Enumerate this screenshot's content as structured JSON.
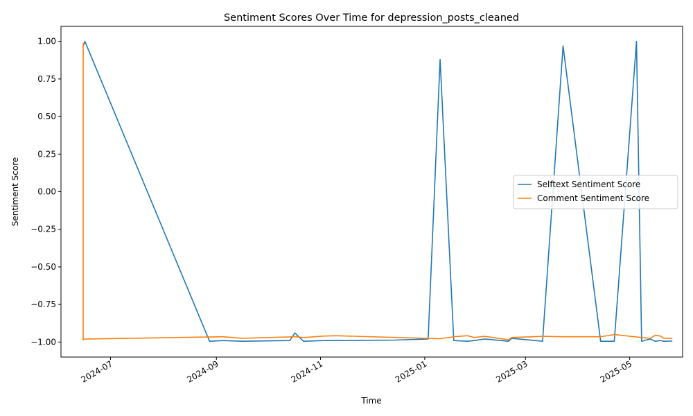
{
  "chart_data": {
    "type": "line",
    "title": "Sentiment Scores Over Time for depression_posts_cleaned",
    "xlabel": "Time",
    "ylabel": "Sentiment Score",
    "xlim": [
      "2024-06-02",
      "2025-06-01"
    ],
    "ylim": [
      -1.1,
      1.1
    ],
    "x_ticks": [
      {
        "date": "2024-07-01",
        "label": "2024-07"
      },
      {
        "date": "2024-09-01",
        "label": "2024-09"
      },
      {
        "date": "2024-11-01",
        "label": "2024-11"
      },
      {
        "date": "2025-01-01",
        "label": "2025-01"
      },
      {
        "date": "2025-03-01",
        "label": "2025-03"
      },
      {
        "date": "2025-05-01",
        "label": "2025-05"
      }
    ],
    "y_ticks": [
      {
        "value": 1.0,
        "label": "1.00"
      },
      {
        "value": 0.75,
        "label": "0.75"
      },
      {
        "value": 0.5,
        "label": "0.50"
      },
      {
        "value": 0.25,
        "label": "0.25"
      },
      {
        "value": 0.0,
        "label": "0.00"
      },
      {
        "value": -0.25,
        "label": "−0.25"
      },
      {
        "value": -0.5,
        "label": "−0.50"
      },
      {
        "value": -0.75,
        "label": "−0.75"
      },
      {
        "value": -1.0,
        "label": "−1.00"
      }
    ],
    "grid": false,
    "legend_position": "center-right",
    "series": [
      {
        "name": "Selftext Sentiment Score",
        "color": "#1f77b4",
        "points": [
          [
            "2024-06-15",
            0.97
          ],
          [
            "2024-06-16",
            1.0
          ],
          [
            "2024-08-28",
            -0.995
          ],
          [
            "2024-09-05",
            -0.99
          ],
          [
            "2024-09-16",
            -0.995
          ],
          [
            "2024-10-14",
            -0.99
          ],
          [
            "2024-10-17",
            -0.94
          ],
          [
            "2024-10-22",
            -0.995
          ],
          [
            "2024-11-03",
            -0.99
          ],
          [
            "2024-12-15",
            -0.987
          ],
          [
            "2025-01-03",
            -0.98
          ],
          [
            "2025-01-10",
            0.88
          ],
          [
            "2025-01-18",
            -0.99
          ],
          [
            "2025-01-26",
            -0.995
          ],
          [
            "2025-01-30",
            -0.99
          ],
          [
            "2025-02-05",
            -0.98
          ],
          [
            "2025-02-19",
            -0.995
          ],
          [
            "2025-02-21",
            -0.975
          ],
          [
            "2025-03-11",
            -0.995
          ],
          [
            "2025-03-23",
            0.97
          ],
          [
            "2025-04-14",
            -0.995
          ],
          [
            "2025-04-22",
            -0.995
          ],
          [
            "2025-05-05",
            1.0
          ],
          [
            "2025-05-08",
            -0.995
          ],
          [
            "2025-05-13",
            -0.98
          ],
          [
            "2025-05-16",
            -0.995
          ],
          [
            "2025-05-19",
            -0.99
          ],
          [
            "2025-05-21",
            -0.995
          ],
          [
            "2025-05-26",
            -0.993
          ]
        ]
      },
      {
        "name": "Comment Sentiment Score",
        "color": "#ff7f0e",
        "points": [
          [
            "2024-06-15",
            0.99
          ],
          [
            "2024-06-15",
            -0.985
          ],
          [
            "2024-06-16",
            -0.98
          ],
          [
            "2024-09-05",
            -0.965
          ],
          [
            "2024-09-16",
            -0.975
          ],
          [
            "2024-10-17",
            -0.965
          ],
          [
            "2024-10-22",
            -0.97
          ],
          [
            "2024-11-03",
            -0.96
          ],
          [
            "2024-11-10",
            -0.958
          ],
          [
            "2025-01-10",
            -0.978
          ],
          [
            "2025-01-18",
            -0.965
          ],
          [
            "2025-01-26",
            -0.958
          ],
          [
            "2025-01-30",
            -0.97
          ],
          [
            "2025-02-05",
            -0.962
          ],
          [
            "2025-02-19",
            -0.985
          ],
          [
            "2025-02-21",
            -0.97
          ],
          [
            "2025-03-11",
            -0.962
          ],
          [
            "2025-03-23",
            -0.965
          ],
          [
            "2025-04-14",
            -0.965
          ],
          [
            "2025-04-22",
            -0.95
          ],
          [
            "2025-05-08",
            -0.97
          ],
          [
            "2025-05-13",
            -0.975
          ],
          [
            "2025-05-16",
            -0.955
          ],
          [
            "2025-05-19",
            -0.96
          ],
          [
            "2025-05-21",
            -0.975
          ],
          [
            "2025-05-26",
            -0.975
          ]
        ]
      }
    ]
  }
}
